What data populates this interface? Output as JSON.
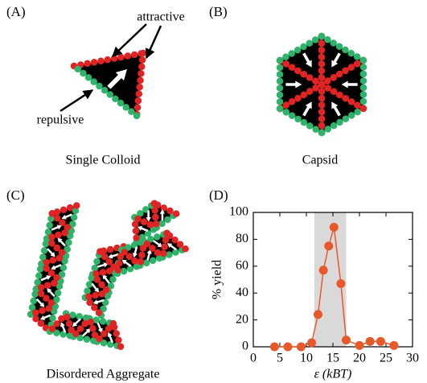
{
  "panels": [
    {
      "label": "(A)",
      "caption": "Single Colloid",
      "annotations": [
        "attractive",
        "repulsive"
      ]
    },
    {
      "label": "(B)",
      "caption": "Capsid"
    },
    {
      "label": "(C)",
      "caption": "Disordered Aggregate"
    }
  ],
  "chart_data": {
    "type": "line",
    "panel_label": "(D)",
    "x_label": "ε (kBT)",
    "y_label": "% yield",
    "x": [
      4,
      6.5,
      9,
      11,
      12.2,
      13.2,
      14.2,
      15.2,
      16.5,
      17.5,
      20,
      22,
      24,
      26.5
    ],
    "values": [
      0,
      0,
      0,
      3,
      24,
      57,
      75,
      89,
      47,
      5,
      1,
      4,
      4,
      1
    ],
    "color": "#e8582a",
    "shaded_region": [
      11.5,
      17.5
    ],
    "shade_color": "#d9d9d9",
    "xlim": [
      0,
      30
    ],
    "xticks": [
      0,
      5,
      10,
      15,
      20,
      25,
      30
    ],
    "ylim": [
      0,
      100
    ],
    "yticks": [
      0,
      20,
      40,
      60,
      80,
      100
    ]
  }
}
